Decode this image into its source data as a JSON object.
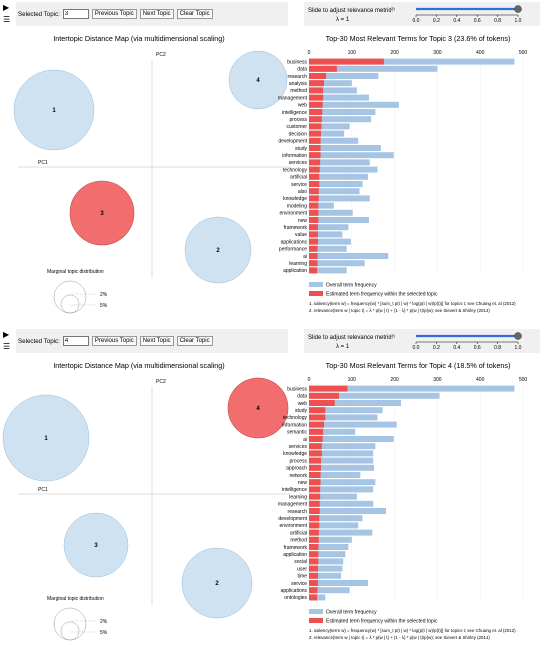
{
  "controls": {
    "topic_label": "Selected Topic:",
    "prev": "Previous Topic",
    "next": "Next Topic",
    "clear": "Clear Topic",
    "slider_label": "Slide to adjust relevance metric:",
    "slider_sup": "(2)",
    "lambda_text": "λ = 1",
    "slider_ticks": [
      "0.0",
      "0.2",
      "0.4",
      "0.6",
      "0.8",
      "1.0"
    ],
    "lambda_value": 1.0
  },
  "map": {
    "title": "Intertopic Distance Map (via multidimensional scaling)",
    "pc1": "PC1",
    "pc2": "PC2",
    "marginal_label": "Marginal topic distribution",
    "legend_small": "2%",
    "legend_large": "5%"
  },
  "legend": {
    "overall": "Overall term frequency",
    "estimated": "Estimated term frequency within the selected topic",
    "note1": "1. saliency(term w) = frequency(w) * [sum_t p(t | w) * log(p(t | w)/p(t))] for topics t; see Chuang et. al (2012)",
    "note2": "2. relevance(term w | topic t) = λ * p(w | t) + (1 - λ) * p(w | t)/p(w); see Sievert & Shirley (2014)"
  },
  "axis_ticks": [
    "0",
    "100",
    "200",
    "300",
    "400",
    "500"
  ],
  "panels": [
    {
      "selected_topic": "3",
      "bar_title": "Top-30 Most Relevant Terms for Topic 3 (23.6% of tokens)",
      "chart_data": {
        "type": "bar",
        "xlim": [
          0,
          500
        ],
        "terms": [
          "business",
          "data",
          "research",
          "analysis",
          "method",
          "management",
          "web",
          "intelligence",
          "process",
          "customer",
          "decision",
          "development",
          "study",
          "information",
          "services",
          "technology",
          "artificial",
          "service",
          "also",
          "knowledge",
          "modeling",
          "environment",
          "new",
          "framework",
          "value",
          "applications",
          "performance",
          "ai",
          "learning",
          "application"
        ],
        "overall": [
          480,
          300,
          162,
          100,
          112,
          140,
          210,
          155,
          145,
          95,
          82,
          115,
          168,
          198,
          142,
          160,
          138,
          125,
          118,
          142,
          58,
          102,
          140,
          92,
          78,
          98,
          88,
          185,
          130,
          88
        ],
        "estimated": [
          175,
          65,
          40,
          35,
          33,
          33,
          32,
          31,
          30,
          29,
          28,
          27,
          27,
          27,
          26,
          25,
          24,
          24,
          23,
          23,
          22,
          22,
          22,
          21,
          21,
          21,
          20,
          20,
          20,
          19
        ]
      },
      "circles": [
        {
          "label": "1",
          "cx": 54,
          "cy": 110,
          "r": 40,
          "selected": false
        },
        {
          "label": "4",
          "cx": 258,
          "cy": 80,
          "r": 29,
          "selected": false
        },
        {
          "label": "3",
          "cx": 102,
          "cy": 213,
          "r": 32,
          "selected": true
        },
        {
          "label": "2",
          "cx": 218,
          "cy": 250,
          "r": 33,
          "selected": false
        }
      ]
    },
    {
      "selected_topic": "4",
      "bar_title": "Top-30 Most Relevant Terms for Topic 4 (18.5% of tokens)",
      "chart_data": {
        "type": "bar",
        "xlim": [
          0,
          500
        ],
        "terms": [
          "business",
          "data",
          "web",
          "study",
          "technology",
          "information",
          "semantic",
          "ai",
          "services",
          "knowledge",
          "process",
          "approach",
          "network",
          "new",
          "intelligence",
          "learning",
          "management",
          "research",
          "development",
          "environment",
          "artificial",
          "method",
          "framework",
          "application",
          "social",
          "user",
          "time",
          "service",
          "applications",
          "ontologies"
        ],
        "overall": [
          480,
          305,
          215,
          172,
          160,
          205,
          108,
          198,
          155,
          150,
          150,
          152,
          120,
          155,
          150,
          112,
          150,
          180,
          125,
          115,
          148,
          100,
          92,
          85,
          80,
          78,
          75,
          138,
          95,
          38
        ],
        "estimated": [
          90,
          70,
          60,
          38,
          38,
          35,
          33,
          32,
          30,
          30,
          28,
          28,
          27,
          27,
          26,
          26,
          25,
          25,
          24,
          24,
          23,
          23,
          22,
          22,
          22,
          21,
          21,
          21,
          20,
          19
        ]
      },
      "circles": [
        {
          "label": "1",
          "cx": 46,
          "cy": 111,
          "r": 43,
          "selected": false
        },
        {
          "label": "4",
          "cx": 258,
          "cy": 81,
          "r": 30,
          "selected": true
        },
        {
          "label": "3",
          "cx": 96,
          "cy": 218,
          "r": 32,
          "selected": false
        },
        {
          "label": "2",
          "cx": 217,
          "cy": 256,
          "r": 35,
          "selected": false
        }
      ]
    }
  ],
  "colors": {
    "overall_bar": "#a6c4e3",
    "estimated_bar": "#ee5050",
    "circle_fill": "#c9dff0",
    "circle_stroke": "#9abcd8",
    "selected_fill": "#f26d6d",
    "slider_blue": "#2f6fd6",
    "control_bg": "#f0f0f0"
  }
}
